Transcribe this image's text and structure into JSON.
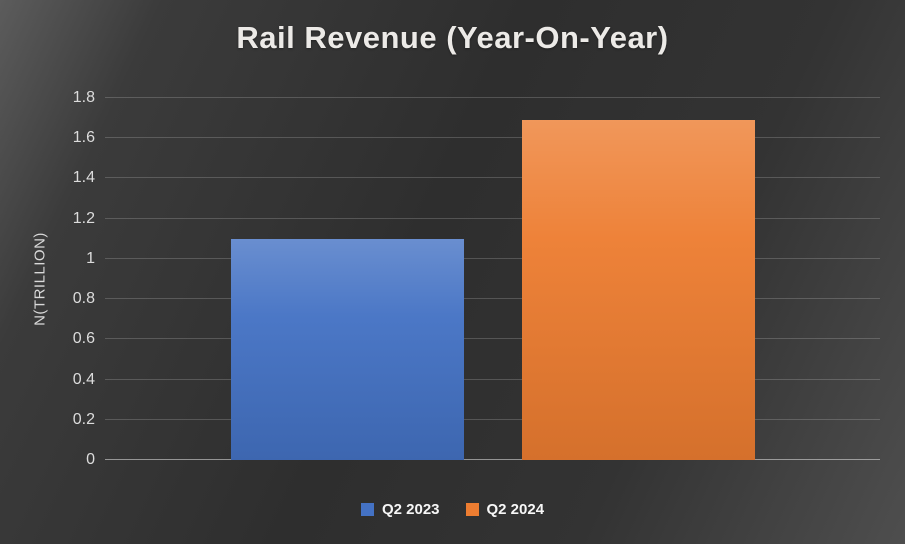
{
  "chart_data": {
    "type": "bar",
    "title": "Rail Revenue (Year-On-Year)",
    "ylabel": "N(TRILLION)",
    "categories": [
      "Q2 2023",
      "Q2 2024"
    ],
    "values": [
      1.1,
      1.69
    ],
    "ylim": [
      0,
      1.8
    ],
    "yticks": [
      0,
      0.2,
      0.4,
      0.6,
      0.8,
      1,
      1.2,
      1.4,
      1.6,
      1.8
    ],
    "ytick_labels": [
      "0",
      "0.2",
      "0.4",
      "0.6",
      "0.8",
      "1",
      "1.2",
      "1.4",
      "1.6",
      "1.8"
    ],
    "grid": true,
    "legend_position": "bottom",
    "colors": [
      "#4472c4",
      "#ed7d31"
    ],
    "legend": [
      {
        "label": "Q2 2023",
        "color": "#4472c4"
      },
      {
        "label": "Q2 2024",
        "color": "#ed7d31"
      }
    ]
  },
  "colors": {
    "background_dark": "#2e2e2e",
    "background_light": "#5c5c5c",
    "gridline": "rgba(255,255,255,0.18)",
    "text": "#eceae7"
  }
}
